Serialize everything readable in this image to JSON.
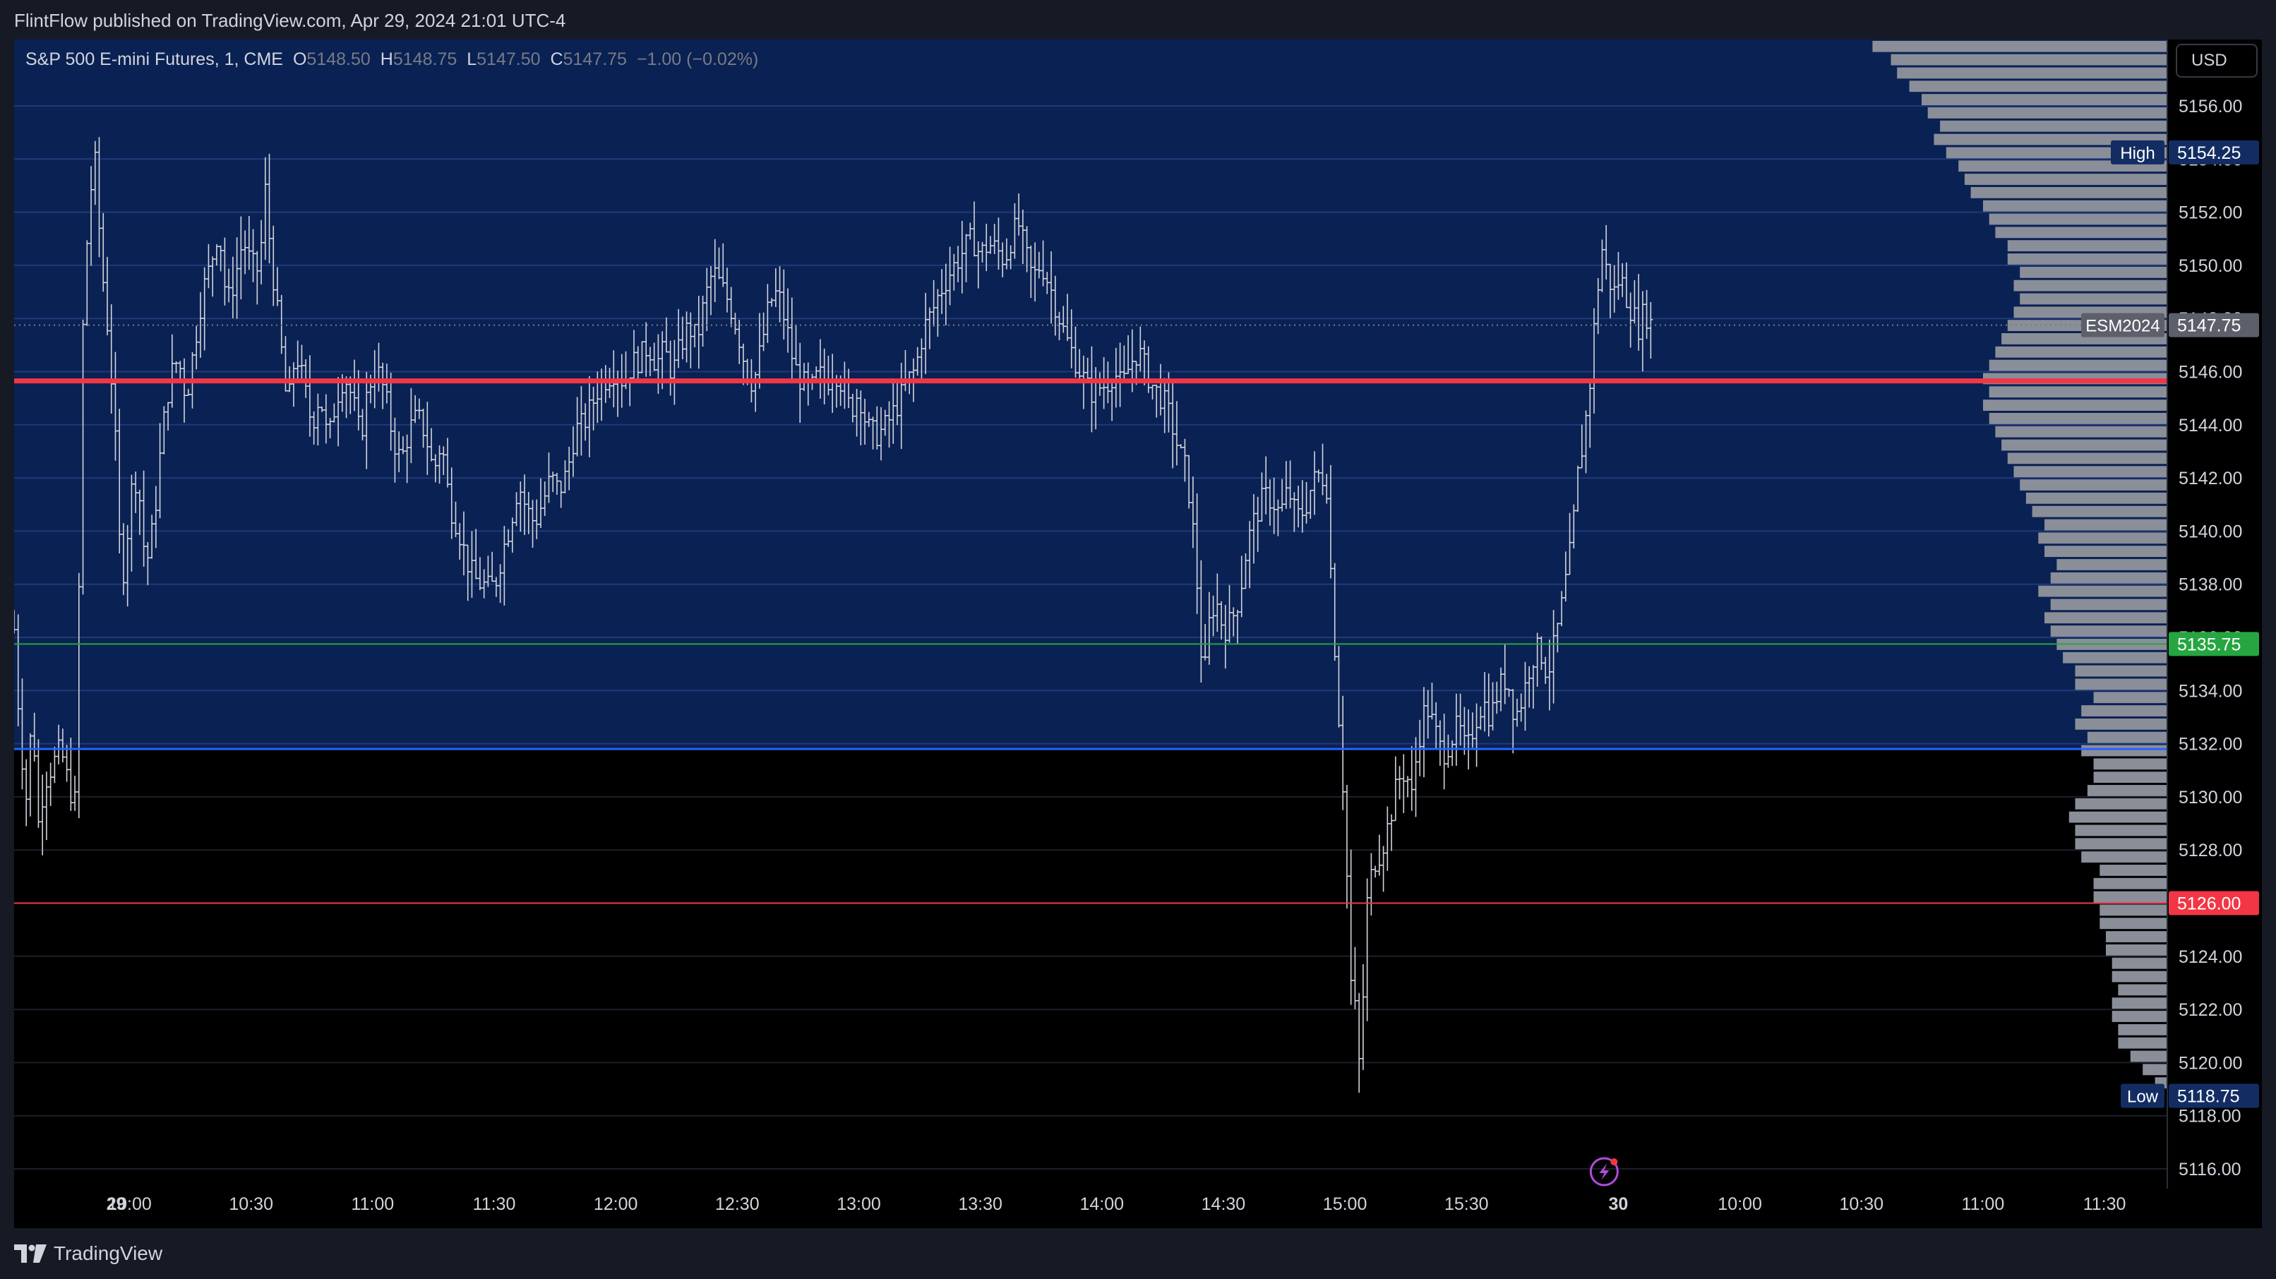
{
  "header": {
    "published": "FlintFlow published on TradingView.com, Apr 29, 2024 21:01 UTC-4"
  },
  "legend": {
    "symbol": "S&P 500 E-mini Futures, 1, CME",
    "open_label": "O",
    "open": "5148.50",
    "high_label": "H",
    "high": "5148.75",
    "low_label": "L",
    "low": "5147.50",
    "close_label": "C",
    "close": "5147.75",
    "change": "−1.00 (−0.02%)"
  },
  "currency": "USD",
  "footer": {
    "brand": "TradingView",
    "logo_icon": "tradingview-logo-icon"
  },
  "colors": {
    "background": "#000000",
    "value_area": "#0a2153",
    "poc_line": "#f23645",
    "level_red": "#f23645",
    "level_green": "#26a641",
    "level_blue": "#2962ff",
    "candle": "#d1d4dc",
    "profile_bar": "#8a8e99",
    "badge_navy": "#132d63"
  },
  "chart_data": {
    "type": "candlestick",
    "title": "S&P 500 E-mini Futures, 1, CME",
    "symbol_badge": "ESM2024",
    "ylim": [
      5114.5,
      5159.6
    ],
    "y_ticks": [
      "5116.00",
      "5118.00",
      "5120.00",
      "5122.00",
      "5124.00",
      "5126.00",
      "5128.00",
      "5130.00",
      "5132.00",
      "5134.00",
      "5136.00",
      "5138.00",
      "5140.00",
      "5142.00",
      "5144.00",
      "5146.00",
      "5148.00",
      "5150.00",
      "5152.00",
      "5154.00",
      "5156.00"
    ],
    "x_ticks": [
      {
        "label": "29",
        "bold": true,
        "t": -3.3
      },
      {
        "label": "10:00",
        "t": 0
      },
      {
        "label": "10:30",
        "t": 30
      },
      {
        "label": "11:00",
        "t": 60
      },
      {
        "label": "11:30",
        "t": 90
      },
      {
        "label": "12:00",
        "t": 120
      },
      {
        "label": "12:30",
        "t": 150
      },
      {
        "label": "13:00",
        "t": 180
      },
      {
        "label": "13:30",
        "t": 210
      },
      {
        "label": "14:00",
        "t": 240
      },
      {
        "label": "14:30",
        "t": 270
      },
      {
        "label": "15:00",
        "t": 300
      },
      {
        "label": "15:30",
        "t": 330
      },
      {
        "label": "30",
        "bold": true,
        "t": 367.5
      },
      {
        "label": "10:00",
        "t": 397.5
      },
      {
        "label": "10:30",
        "t": 427.5
      },
      {
        "label": "11:00",
        "t": 457.5
      },
      {
        "label": "11:30",
        "t": 487.5
      }
    ],
    "x_range_minutes": [
      -28.5,
      503
    ],
    "value_area": {
      "low": 5131.8,
      "high": 5159.6
    },
    "levels": [
      {
        "name": "poc",
        "price": 5145.65,
        "color": "#f23645",
        "width": 7
      },
      {
        "name": "level-5135.75",
        "price": 5135.75,
        "color": "#26a641",
        "width": 2,
        "badge": "5135.75"
      },
      {
        "name": "level-5131.8",
        "price": 5131.8,
        "color": "#2962ff",
        "width": 3
      },
      {
        "name": "level-5126",
        "price": 5126.0,
        "color": "#f23645",
        "width": 2,
        "badge": "5126.00"
      }
    ],
    "badges": {
      "high": {
        "label": "High",
        "price": 5154.25,
        "value": "5154.25"
      },
      "last": {
        "label": "ESM2024",
        "price": 5147.75,
        "value": "5147.75"
      },
      "low": {
        "label": "Low",
        "price": 5118.75,
        "value": "5118.75"
      }
    },
    "price_path": [
      {
        "t": -28.5,
        "p": 5136.3
      },
      {
        "t": -27,
        "p": 5132.2
      },
      {
        "t": -25.5,
        "p": 5130.0
      },
      {
        "t": -24,
        "p": 5133.2
      },
      {
        "t": -22.5,
        "p": 5129.0
      },
      {
        "t": -21,
        "p": 5130.6
      },
      {
        "t": -19,
        "p": 5131.2
      },
      {
        "t": -17,
        "p": 5131.8
      },
      {
        "t": -15,
        "p": 5130.4
      },
      {
        "t": -13,
        "p": 5129.6
      },
      {
        "t": -12,
        "p": 5146
      },
      {
        "t": -10,
        "p": 5152.5
      },
      {
        "t": -8.5,
        "p": 5153.8
      },
      {
        "t": -7,
        "p": 5150.2
      },
      {
        "t": -5,
        "p": 5147.0
      },
      {
        "t": -3.5,
        "p": 5143.3
      },
      {
        "t": -2,
        "p": 5137.8
      },
      {
        "t": -0.5,
        "p": 5140.0
      },
      {
        "t": 1,
        "p": 5142.3
      },
      {
        "t": 2.5,
        "p": 5141.2
      },
      {
        "t": 4,
        "p": 5138.6
      },
      {
        "t": 6,
        "p": 5140.3
      },
      {
        "t": 8,
        "p": 5143.6
      },
      {
        "t": 10,
        "p": 5145.8
      },
      {
        "t": 12,
        "p": 5146.5
      },
      {
        "t": 14,
        "p": 5145.0
      },
      {
        "t": 16,
        "p": 5147.0
      },
      {
        "t": 18,
        "p": 5149.0
      },
      {
        "t": 20,
        "p": 5150.0
      },
      {
        "t": 22,
        "p": 5151.5
      },
      {
        "t": 24,
        "p": 5148.5
      },
      {
        "t": 26,
        "p": 5149.5
      },
      {
        "t": 28,
        "p": 5151.0
      },
      {
        "t": 30,
        "p": 5150.0
      },
      {
        "t": 32,
        "p": 5149.8
      },
      {
        "t": 33.5,
        "p": 5152.8
      },
      {
        "t": 35,
        "p": 5150.2
      },
      {
        "t": 37,
        "p": 5147.5
      },
      {
        "t": 39,
        "p": 5144.5
      },
      {
        "t": 41,
        "p": 5146.8
      },
      {
        "t": 43,
        "p": 5145.5
      },
      {
        "t": 45,
        "p": 5144.0
      },
      {
        "t": 47,
        "p": 5145.2
      },
      {
        "t": 49,
        "p": 5143.3
      },
      {
        "t": 51,
        "p": 5145.0
      },
      {
        "t": 53,
        "p": 5145.9
      },
      {
        "t": 55,
        "p": 5145.0
      },
      {
        "t": 57,
        "p": 5143.5
      },
      {
        "t": 59,
        "p": 5145.5
      },
      {
        "t": 61,
        "p": 5146.1
      },
      {
        "t": 63,
        "p": 5145.2
      },
      {
        "t": 65,
        "p": 5143.5
      },
      {
        "t": 67,
        "p": 5142.6
      },
      {
        "t": 69,
        "p": 5143.8
      },
      {
        "t": 71,
        "p": 5144.3
      },
      {
        "t": 73,
        "p": 5143.7
      },
      {
        "t": 75,
        "p": 5142.2
      },
      {
        "t": 77,
        "p": 5143.4
      },
      {
        "t": 79,
        "p": 5141.0
      },
      {
        "t": 81,
        "p": 5140.2
      },
      {
        "t": 83,
        "p": 5139.0
      },
      {
        "t": 85,
        "p": 5138.2
      },
      {
        "t": 87,
        "p": 5138.0
      },
      {
        "t": 89,
        "p": 5137.8
      },
      {
        "t": 90.5,
        "p": 5138.2
      },
      {
        "t": 92,
        "p": 5139.2
      },
      {
        "t": 94,
        "p": 5140.3
      },
      {
        "t": 96,
        "p": 5141.8
      },
      {
        "t": 98,
        "p": 5140.8
      },
      {
        "t": 100,
        "p": 5140.3
      },
      {
        "t": 102,
        "p": 5141.1
      },
      {
        "t": 104,
        "p": 5142.0
      },
      {
        "t": 106,
        "p": 5141.5
      },
      {
        "t": 108,
        "p": 5142.2
      },
      {
        "t": 110,
        "p": 5143.8
      },
      {
        "t": 112,
        "p": 5144.0
      },
      {
        "t": 114,
        "p": 5144.7
      },
      {
        "t": 116,
        "p": 5145.5
      },
      {
        "t": 118,
        "p": 5145.8
      },
      {
        "t": 120,
        "p": 5146.1
      },
      {
        "t": 122,
        "p": 5145.6
      },
      {
        "t": 124,
        "p": 5146.3
      },
      {
        "t": 126,
        "p": 5146.5
      },
      {
        "t": 128,
        "p": 5147.0
      },
      {
        "t": 130,
        "p": 5146.3
      },
      {
        "t": 132,
        "p": 5146.8
      },
      {
        "t": 134,
        "p": 5145.9
      },
      {
        "t": 136,
        "p": 5147.0
      },
      {
        "t": 138,
        "p": 5147.7
      },
      {
        "t": 140,
        "p": 5147.2
      },
      {
        "t": 142,
        "p": 5148.7
      },
      {
        "t": 144,
        "p": 5149.8
      },
      {
        "t": 146,
        "p": 5149.2
      },
      {
        "t": 148,
        "p": 5148.6
      },
      {
        "t": 150,
        "p": 5147.6
      },
      {
        "t": 152,
        "p": 5146.2
      },
      {
        "t": 154,
        "p": 5145.5
      },
      {
        "t": 156,
        "p": 5147.0
      },
      {
        "t": 158,
        "p": 5148.6
      },
      {
        "t": 160,
        "p": 5149.0
      },
      {
        "t": 162,
        "p": 5147.8
      },
      {
        "t": 164,
        "p": 5146.2
      },
      {
        "t": 166,
        "p": 5145.6
      },
      {
        "t": 168,
        "p": 5145.2
      },
      {
        "t": 170,
        "p": 5145.9
      },
      {
        "t": 172,
        "p": 5145.6
      },
      {
        "t": 174,
        "p": 5146.1
      },
      {
        "t": 176,
        "p": 5145.5
      },
      {
        "t": 178,
        "p": 5144.5
      },
      {
        "t": 180,
        "p": 5145.3
      },
      {
        "t": 182,
        "p": 5143.9
      },
      {
        "t": 184,
        "p": 5143.6
      },
      {
        "t": 186,
        "p": 5143.8
      },
      {
        "t": 188,
        "p": 5144.3
      },
      {
        "t": 190,
        "p": 5144.9
      },
      {
        "t": 192,
        "p": 5145.6
      },
      {
        "t": 194,
        "p": 5146.1
      },
      {
        "t": 196,
        "p": 5147.6
      },
      {
        "t": 198,
        "p": 5148.2
      },
      {
        "t": 200,
        "p": 5149.0
      },
      {
        "t": 202,
        "p": 5149.6
      },
      {
        "t": 204,
        "p": 5150.1
      },
      {
        "t": 206,
        "p": 5150.6
      },
      {
        "t": 208,
        "p": 5151.0
      },
      {
        "t": 210,
        "p": 5150.4
      },
      {
        "t": 212,
        "p": 5150.8
      },
      {
        "t": 214,
        "p": 5150.6
      },
      {
        "t": 216,
        "p": 5150.2
      },
      {
        "t": 218,
        "p": 5151.2
      },
      {
        "t": 219.5,
        "p": 5151.5
      },
      {
        "t": 221,
        "p": 5150.5
      },
      {
        "t": 223,
        "p": 5149.5
      },
      {
        "t": 225,
        "p": 5150.1
      },
      {
        "t": 227,
        "p": 5149.3
      },
      {
        "t": 229,
        "p": 5148.3
      },
      {
        "t": 231,
        "p": 5147.3
      },
      {
        "t": 233,
        "p": 5146.6
      },
      {
        "t": 235,
        "p": 5145.9
      },
      {
        "t": 237,
        "p": 5145.2
      },
      {
        "t": 239,
        "p": 5145.4
      },
      {
        "t": 241,
        "p": 5145.5
      },
      {
        "t": 243,
        "p": 5146.0
      },
      {
        "t": 245,
        "p": 5145.4
      },
      {
        "t": 247,
        "p": 5146.3
      },
      {
        "t": 249,
        "p": 5146.8
      },
      {
        "t": 251,
        "p": 5146.0
      },
      {
        "t": 253,
        "p": 5145.3
      },
      {
        "t": 255,
        "p": 5145.0
      },
      {
        "t": 257,
        "p": 5144.2
      },
      {
        "t": 259,
        "p": 5143.0
      },
      {
        "t": 261,
        "p": 5142.2
      },
      {
        "t": 262.5,
        "p": 5140.0
      },
      {
        "t": 264,
        "p": 5137.0
      },
      {
        "t": 265,
        "p": 5134.0
      },
      {
        "t": 266.5,
        "p": 5136.5
      },
      {
        "t": 268,
        "p": 5137.5
      },
      {
        "t": 270,
        "p": 5136.3
      },
      {
        "t": 272,
        "p": 5136.6
      },
      {
        "t": 274,
        "p": 5137.6
      },
      {
        "t": 276,
        "p": 5139.6
      },
      {
        "t": 278,
        "p": 5140.6
      },
      {
        "t": 280,
        "p": 5141.3
      },
      {
        "t": 282,
        "p": 5141.2
      },
      {
        "t": 284,
        "p": 5140.6
      },
      {
        "t": 286,
        "p": 5141.6
      },
      {
        "t": 288,
        "p": 5140.5
      },
      {
        "t": 290,
        "p": 5140.8
      },
      {
        "t": 292,
        "p": 5141.8
      },
      {
        "t": 294,
        "p": 5142.2
      },
      {
        "t": 295.5,
        "p": 5141.7
      },
      {
        "t": 297,
        "p": 5137.0
      },
      {
        "t": 298.5,
        "p": 5133.0
      },
      {
        "t": 299.5,
        "p": 5130.5
      },
      {
        "t": 300.5,
        "p": 5127.0
      },
      {
        "t": 301.5,
        "p": 5123.0
      },
      {
        "t": 302.5,
        "p": 5122.0
      },
      {
        "t": 303.5,
        "p": 5120.0
      },
      {
        "t": 304.5,
        "p": 5122.5
      },
      {
        "t": 305.5,
        "p": 5126.0
      },
      {
        "t": 307,
        "p": 5127.5
      },
      {
        "t": 309,
        "p": 5128.0
      },
      {
        "t": 311,
        "p": 5129.1
      },
      {
        "t": 313,
        "p": 5130.6
      },
      {
        "t": 315,
        "p": 5131.0
      },
      {
        "t": 316.5,
        "p": 5130.0
      },
      {
        "t": 318,
        "p": 5132.0
      },
      {
        "t": 320,
        "p": 5133.5
      },
      {
        "t": 322,
        "p": 5132.6
      },
      {
        "t": 324,
        "p": 5131.6
      },
      {
        "t": 326,
        "p": 5132.1
      },
      {
        "t": 328,
        "p": 5132.7
      },
      {
        "t": 330,
        "p": 5131.6
      },
      {
        "t": 332,
        "p": 5132.8
      },
      {
        "t": 334,
        "p": 5133.6
      },
      {
        "t": 336,
        "p": 5133.0
      },
      {
        "t": 338,
        "p": 5134.1
      },
      {
        "t": 340,
        "p": 5134.5
      },
      {
        "t": 342,
        "p": 5133.0
      },
      {
        "t": 344,
        "p": 5133.8
      },
      {
        "t": 346,
        "p": 5135.2
      },
      {
        "t": 348,
        "p": 5135.6
      },
      {
        "t": 350,
        "p": 5134.6
      },
      {
        "t": 352,
        "p": 5135.9
      },
      {
        "t": 354,
        "p": 5137.6
      },
      {
        "t": 356,
        "p": 5139.6
      },
      {
        "t": 357.5,
        "p": 5142.1
      },
      {
        "t": 359,
        "p": 5143.6
      },
      {
        "t": 360.5,
        "p": 5145.6
      },
      {
        "t": 362,
        "p": 5148.6
      },
      {
        "t": 363.5,
        "p": 5150.6
      },
      {
        "t": 365,
        "p": 5149.5
      },
      {
        "t": 366.5,
        "p": 5149.0
      },
      {
        "t": 368,
        "p": 5149.6
      },
      {
        "t": 369.5,
        "p": 5148.8
      },
      {
        "t": 371,
        "p": 5148.2
      },
      {
        "t": 372.5,
        "p": 5147.7
      },
      {
        "t": 374,
        "p": 5148.3
      },
      {
        "t": 375.5,
        "p": 5147.8
      }
    ],
    "volume_profile": {
      "bin_size": 0.5,
      "start_price": 5119.0,
      "widths": [
        2,
        4,
        6,
        8,
        8,
        9,
        9,
        8,
        9,
        9,
        10,
        10,
        11,
        11,
        12,
        12,
        11,
        14,
        15,
        15,
        16,
        15,
        13,
        12,
        12,
        14,
        13,
        15,
        14,
        12,
        15,
        15,
        17,
        18,
        19,
        20,
        19,
        21,
        19,
        18,
        20,
        21,
        20,
        22,
        23,
        24,
        25,
        26,
        27,
        28,
        29,
        30,
        29,
        30,
        29,
        28,
        27,
        26,
        25,
        24,
        25,
        24,
        26,
        26,
        28,
        29,
        30,
        32,
        33,
        34,
        36,
        38,
        37,
        39,
        40,
        42,
        44,
        45,
        48,
        52,
        58,
        64,
        66,
        72,
        72,
        74,
        68,
        70,
        66,
        64,
        60,
        58,
        56,
        56,
        58,
        60,
        58,
        56,
        52,
        48,
        44,
        40,
        36,
        32,
        30,
        28,
        24,
        20,
        18,
        16,
        14,
        12,
        11,
        10,
        8,
        6,
        4,
        3
      ]
    }
  }
}
